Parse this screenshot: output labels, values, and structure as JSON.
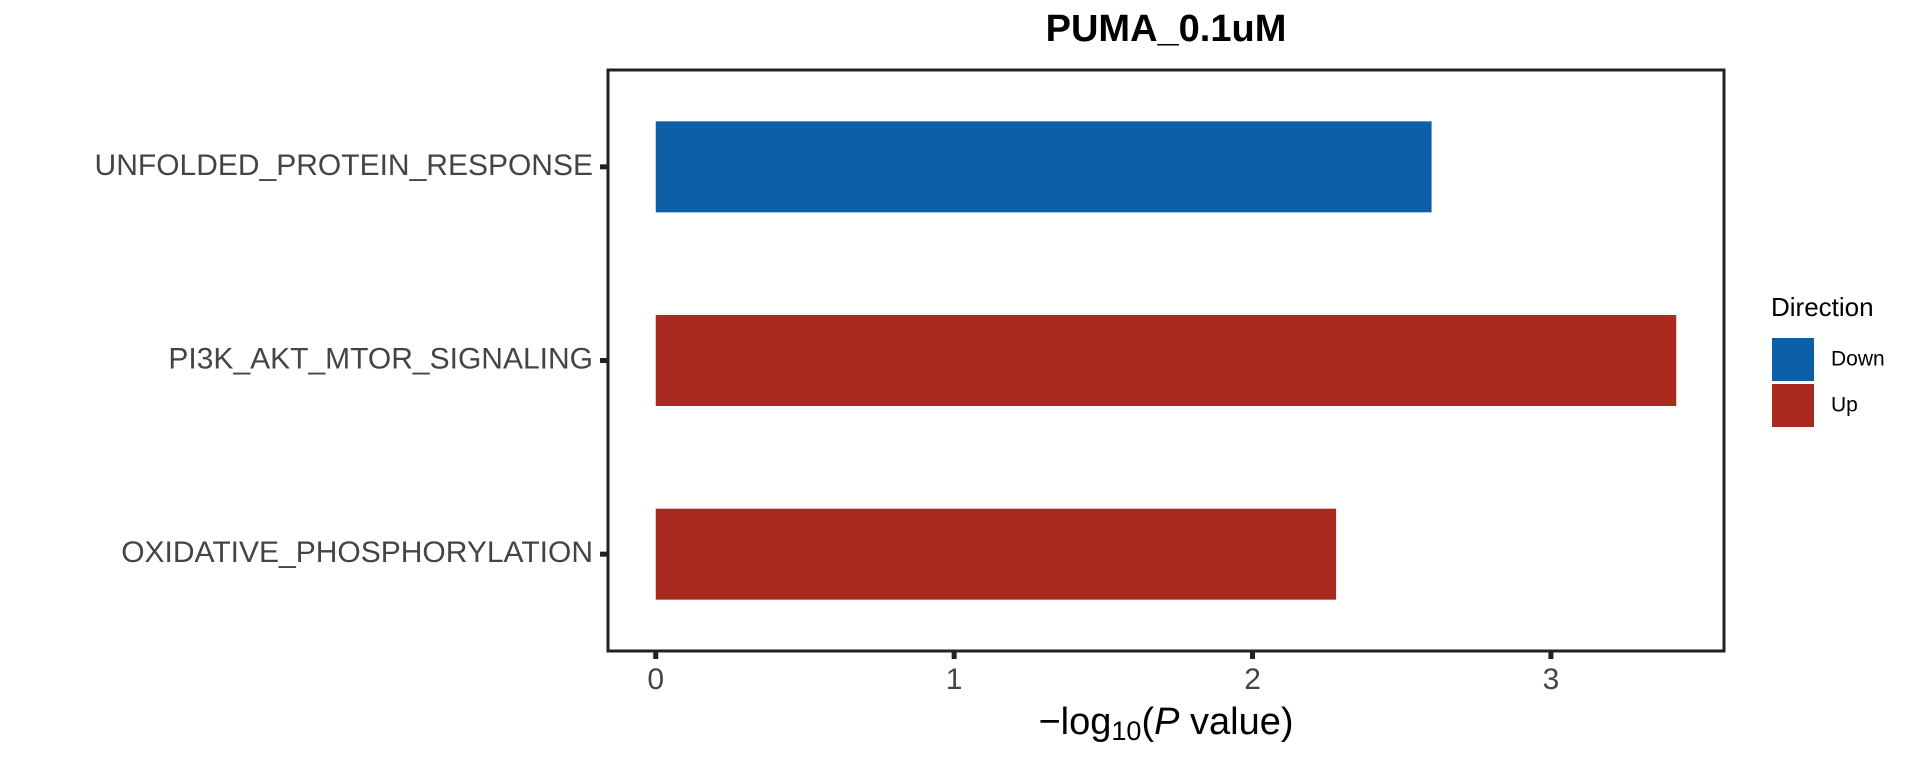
{
  "chart_data": {
    "type": "bar",
    "orientation": "horizontal",
    "title": "PUMA_0.1uM",
    "categories": [
      "UNFOLDED_PROTEIN_RESPONSE",
      "PI3K_AKT_MTOR_SIGNALING",
      "OXIDATIVE_PHOSPHORYLATION"
    ],
    "series": [
      {
        "name": "Down",
        "color": "#0d5fa8",
        "values": [
          2.6,
          null,
          null
        ]
      },
      {
        "name": "Up",
        "color": "#aa2a20",
        "values": [
          null,
          3.42,
          2.28
        ]
      }
    ],
    "x_label": [
      "−log",
      "10",
      "(",
      "P",
      " value)"
    ],
    "legend_title": "Direction",
    "xlim": [
      -0.16,
      3.58
    ],
    "xticks": [
      0,
      1,
      2,
      3
    ],
    "grid": false,
    "legend": "right"
  }
}
